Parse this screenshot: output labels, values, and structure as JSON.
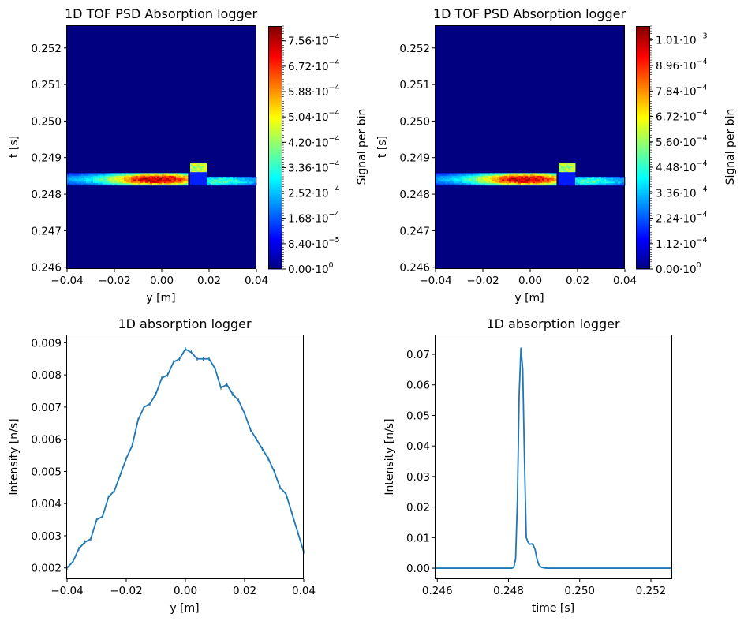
{
  "chart_data": [
    {
      "type": "heatmap",
      "title": "1D TOF PSD Absorption logger",
      "xlabel": "y [m]",
      "ylabel": "t [s]",
      "xlim": [
        -0.04,
        0.04
      ],
      "ylim": [
        0.24595,
        0.2526
      ],
      "xticks": [
        "−0.04",
        "−0.02",
        "0.00",
        "0.02",
        "0.04"
      ],
      "yticks": [
        "0.246",
        "0.247",
        "0.248",
        "0.249",
        "0.250",
        "0.251",
        "0.252"
      ],
      "colormap": "jet",
      "colorbar": {
        "label": "Signal per bin",
        "max": 0.000805,
        "ticks": [
          {
            "mant": "0.00",
            "exp": "0"
          },
          {
            "mant": "8.40",
            "exp": "−5"
          },
          {
            "mant": "1.68",
            "exp": "−4"
          },
          {
            "mant": "2.52",
            "exp": "−4"
          },
          {
            "mant": "3.36",
            "exp": "−4"
          },
          {
            "mant": "4.20",
            "exp": "−4"
          },
          {
            "mant": "5.04",
            "exp": "−4"
          },
          {
            "mant": "5.88",
            "exp": "−4"
          },
          {
            "mant": "6.72",
            "exp": "−4"
          },
          {
            "mant": "7.56",
            "exp": "−4"
          }
        ],
        "tick_values": [
          0,
          8.4e-05,
          0.000168,
          0.000252,
          0.000336,
          0.00042,
          0.000504,
          0.000588,
          0.000672,
          0.000756
        ]
      },
      "features": {
        "main_band": {
          "y_range": [
            -0.04,
            0.011
          ],
          "t_center": 0.24841,
          "t_halfwidth": 0.00017,
          "peak": 0.00078
        },
        "raised_block": {
          "y_range": [
            0.012,
            0.0195
          ],
          "t_range": [
            0.2486,
            0.24883
          ],
          "value": 0.00045
        },
        "right_band": {
          "y_range": [
            0.0195,
            0.04
          ],
          "t_center": 0.24836,
          "t_halfwidth": 0.00013,
          "peak": 0.00036
        }
      }
    },
    {
      "type": "heatmap",
      "title": "1D TOF PSD Absorption logger",
      "xlabel": "y [m]",
      "ylabel": "t [s]",
      "xlim": [
        -0.04,
        0.04
      ],
      "ylim": [
        0.24595,
        0.2526
      ],
      "xticks": [
        "−0.04",
        "−0.02",
        "0.00",
        "0.02",
        "0.04"
      ],
      "yticks": [
        "0.246",
        "0.247",
        "0.248",
        "0.249",
        "0.250",
        "0.251",
        "0.252"
      ],
      "colormap": "jet",
      "colorbar": {
        "label": "Signal per bin",
        "max": 0.00107,
        "ticks": [
          {
            "mant": "0.00",
            "exp": "0"
          },
          {
            "mant": "1.12",
            "exp": "−4"
          },
          {
            "mant": "2.24",
            "exp": "−4"
          },
          {
            "mant": "3.36",
            "exp": "−4"
          },
          {
            "mant": "4.48",
            "exp": "−4"
          },
          {
            "mant": "5.60",
            "exp": "−4"
          },
          {
            "mant": "6.72",
            "exp": "−4"
          },
          {
            "mant": "7.84",
            "exp": "−4"
          },
          {
            "mant": "8.96",
            "exp": "−4"
          },
          {
            "mant": "1.01",
            "exp": "−3"
          }
        ],
        "tick_values": [
          0,
          0.000112,
          0.000224,
          0.000336,
          0.000448,
          0.00056,
          0.000672,
          0.000784,
          0.000896,
          0.00101
        ]
      },
      "features": {
        "main_band": {
          "y_range": [
            -0.04,
            0.011
          ],
          "t_center": 0.24841,
          "t_halfwidth": 0.00017,
          "peak": 0.00103
        },
        "raised_block": {
          "y_range": [
            0.012,
            0.0195
          ],
          "t_range": [
            0.2486,
            0.24883
          ],
          "value": 0.00058
        },
        "right_band": {
          "y_range": [
            0.0195,
            0.04
          ],
          "t_center": 0.24836,
          "t_halfwidth": 0.00013,
          "peak": 0.00047
        }
      }
    },
    {
      "type": "line",
      "title": "1D absorption logger",
      "xlabel": "y [m]",
      "ylabel": "Intensity [n/s]",
      "xlim": [
        -0.04,
        0.04
      ],
      "ylim": [
        0.00165,
        0.00923
      ],
      "xticks": [
        "−0.04",
        "−0.02",
        "0.00",
        "0.02",
        "0.04"
      ],
      "yticks": [
        "0.002",
        "0.003",
        "0.004",
        "0.005",
        "0.006",
        "0.007",
        "0.008",
        "0.009"
      ],
      "error_bars": true,
      "series": [
        {
          "x": [
            -0.04,
            -0.038,
            -0.036,
            -0.034,
            -0.032,
            -0.03,
            -0.028,
            -0.026,
            -0.024,
            -0.022,
            -0.02,
            -0.018,
            -0.016,
            -0.014,
            -0.012,
            -0.01,
            -0.008,
            -0.006,
            -0.004,
            -0.002,
            0.0,
            0.002,
            0.004,
            0.006,
            0.008,
            0.01,
            0.012,
            0.014,
            0.016,
            0.018,
            0.02,
            0.022,
            0.024,
            0.026,
            0.028,
            0.03,
            0.032,
            0.034,
            0.036,
            0.038,
            0.04
          ],
          "y": [
            0.002,
            0.0022,
            0.0026,
            0.0028,
            0.0029,
            0.0035,
            0.0036,
            0.0042,
            0.0044,
            0.0049,
            0.0054,
            0.0058,
            0.0066,
            0.007,
            0.0071,
            0.0074,
            0.0079,
            0.008,
            0.0084,
            0.0085,
            0.0088,
            0.0087,
            0.0085,
            0.0085,
            0.0085,
            0.0082,
            0.0076,
            0.0077,
            0.0074,
            0.0072,
            0.0068,
            0.0063,
            0.006,
            0.0057,
            0.0054,
            0.005,
            0.0045,
            0.0043,
            0.0037,
            0.0031,
            0.0025
          ]
        }
      ]
    },
    {
      "type": "line",
      "title": "1D absorption logger",
      "xlabel": "time [s]",
      "ylabel": "Intensity [n/s]",
      "xlim": [
        0.24595,
        0.2526
      ],
      "ylim": [
        -0.0036,
        0.0762
      ],
      "xticks": [
        "0.246",
        "0.248",
        "0.250",
        "0.252"
      ],
      "yticks": [
        "0.00",
        "0.01",
        "0.02",
        "0.03",
        "0.04",
        "0.05",
        "0.06",
        "0.07"
      ],
      "series": [
        {
          "x": [
            0.24595,
            0.2481,
            0.24815,
            0.2482,
            0.24825,
            0.2483,
            0.24835,
            0.2484,
            0.24845,
            0.2485,
            0.24855,
            0.2486,
            0.24865,
            0.2487,
            0.24875,
            0.2488,
            0.24885,
            0.2489,
            0.24895,
            0.249,
            0.2491,
            0.2526
          ],
          "y": [
            0.0,
            0.0,
            0.0003,
            0.003,
            0.022,
            0.057,
            0.072,
            0.065,
            0.035,
            0.01,
            0.0085,
            0.0078,
            0.008,
            0.0075,
            0.006,
            0.003,
            0.0012,
            0.0005,
            0.0002,
            0.0001,
            0.0,
            0.0
          ]
        }
      ]
    }
  ]
}
